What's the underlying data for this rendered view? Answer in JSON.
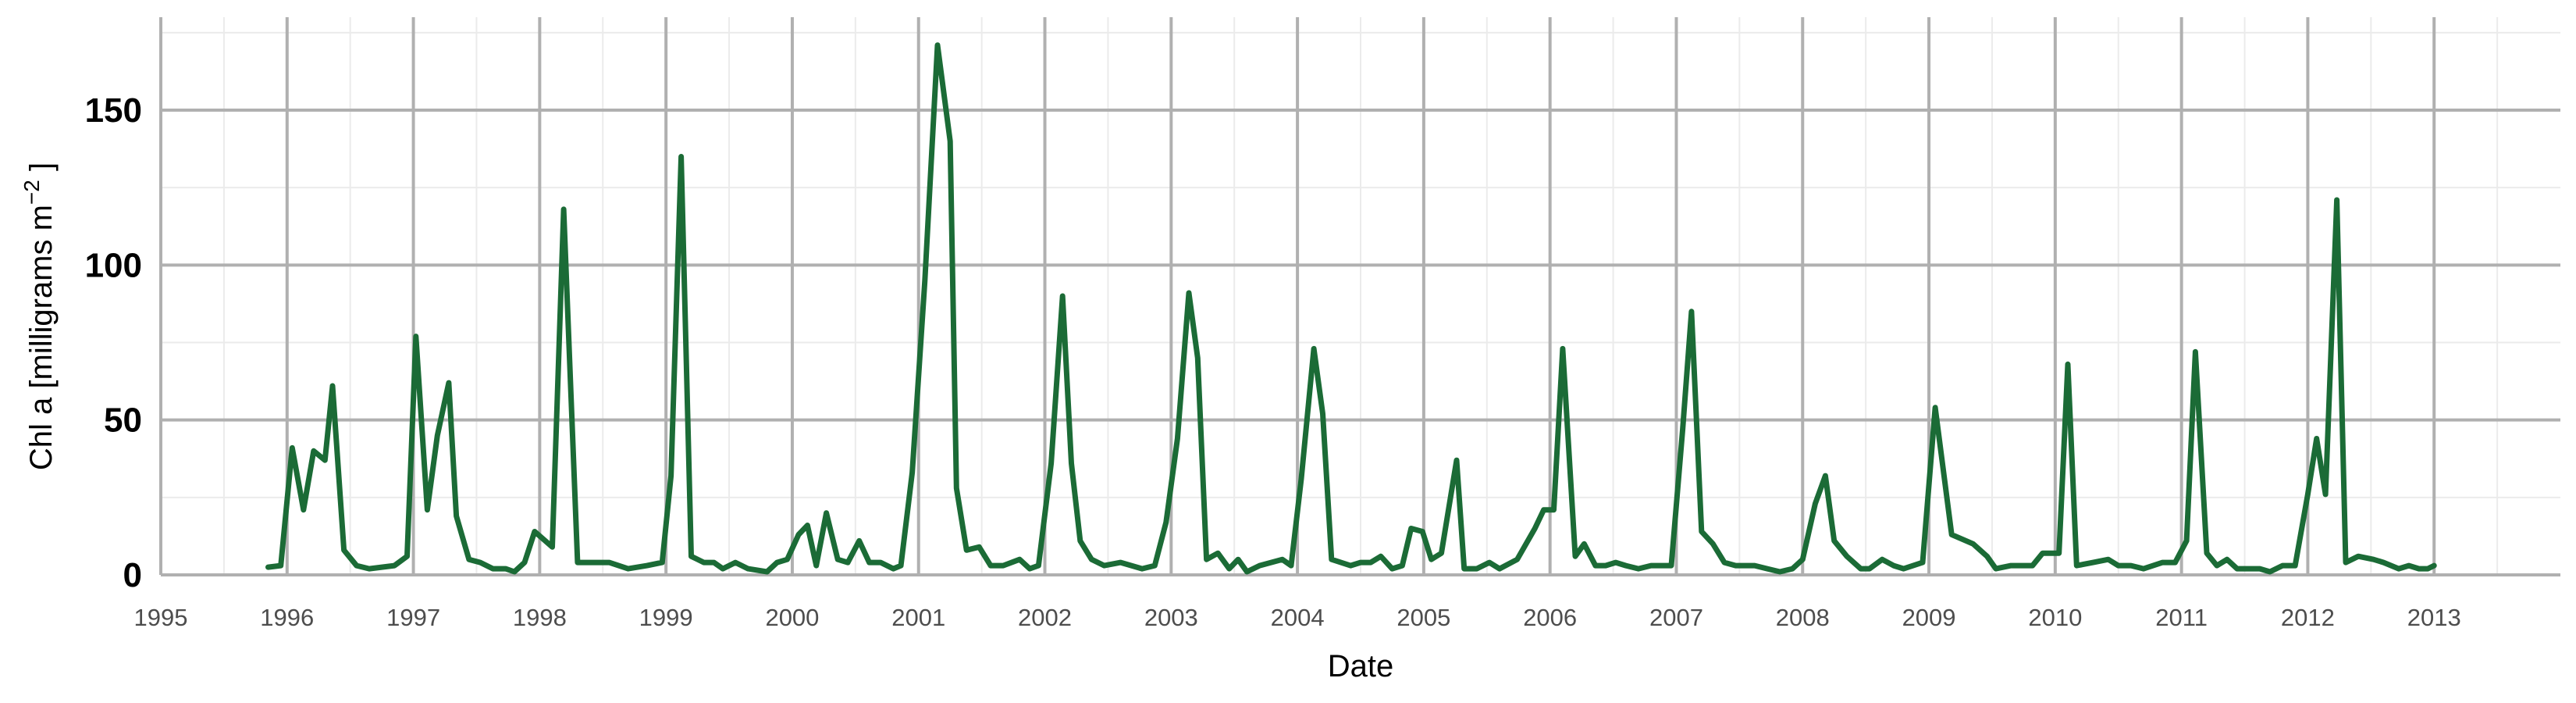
{
  "chart_data": {
    "type": "line",
    "xlabel": "Date",
    "ylabel": {
      "prefix": "Chl a [milligrams  m",
      "superscript": "−2",
      "suffix": " ]"
    },
    "xlim": [
      1995.0,
      2014.0
    ],
    "ylim": [
      0,
      180
    ],
    "x_ticks": [
      1995,
      1996,
      1997,
      1998,
      1999,
      2000,
      2001,
      2002,
      2003,
      2004,
      2005,
      2006,
      2007,
      2008,
      2009,
      2010,
      2011,
      2012,
      2013
    ],
    "y_ticks": [
      0,
      50,
      100,
      150
    ],
    "grid": true,
    "series": [
      {
        "color": "#1b6b36",
        "points": [
          [
            1995.85,
            2.5
          ],
          [
            1995.95,
            3
          ],
          [
            1996.04,
            41
          ],
          [
            1996.13,
            21
          ],
          [
            1996.21,
            40
          ],
          [
            1996.3,
            37
          ],
          [
            1996.36,
            61
          ],
          [
            1996.45,
            8
          ],
          [
            1996.55,
            3
          ],
          [
            1996.65,
            2
          ],
          [
            1996.85,
            3
          ],
          [
            1996.95,
            6
          ],
          [
            1997.02,
            77
          ],
          [
            1997.11,
            21
          ],
          [
            1997.19,
            45
          ],
          [
            1997.28,
            62
          ],
          [
            1997.34,
            19
          ],
          [
            1997.44,
            5
          ],
          [
            1997.53,
            4
          ],
          [
            1997.63,
            2
          ],
          [
            1997.73,
            2
          ],
          [
            1997.8,
            1
          ],
          [
            1997.88,
            4
          ],
          [
            1997.96,
            14
          ],
          [
            1998.1,
            9
          ],
          [
            1998.19,
            118
          ],
          [
            1998.3,
            4
          ],
          [
            1998.45,
            4
          ],
          [
            1998.55,
            4
          ],
          [
            1998.7,
            2
          ],
          [
            1998.85,
            3
          ],
          [
            1998.97,
            4
          ],
          [
            1999.04,
            32
          ],
          [
            1999.12,
            135
          ],
          [
            1999.2,
            6
          ],
          [
            1999.3,
            4
          ],
          [
            1999.38,
            4
          ],
          [
            1999.45,
            2
          ],
          [
            1999.55,
            4
          ],
          [
            1999.65,
            2
          ],
          [
            1999.8,
            1
          ],
          [
            1999.88,
            4
          ],
          [
            1999.96,
            5
          ],
          [
            2000.05,
            13
          ],
          [
            2000.12,
            16
          ],
          [
            2000.19,
            3
          ],
          [
            2000.27,
            20
          ],
          [
            2000.36,
            5
          ],
          [
            2000.44,
            4
          ],
          [
            2000.53,
            11
          ],
          [
            2000.61,
            4
          ],
          [
            2000.7,
            4
          ],
          [
            2000.8,
            2
          ],
          [
            2000.86,
            3
          ],
          [
            2000.95,
            33
          ],
          [
            2001.05,
            95
          ],
          [
            2001.15,
            171
          ],
          [
            2001.25,
            140
          ],
          [
            2001.3,
            28
          ],
          [
            2001.38,
            8
          ],
          [
            2001.48,
            9
          ],
          [
            2001.57,
            3
          ],
          [
            2001.67,
            3
          ],
          [
            2001.8,
            5
          ],
          [
            2001.88,
            2
          ],
          [
            2001.95,
            3
          ],
          [
            2002.05,
            36
          ],
          [
            2002.14,
            90
          ],
          [
            2002.21,
            36
          ],
          [
            2002.28,
            11
          ],
          [
            2002.37,
            5
          ],
          [
            2002.47,
            3
          ],
          [
            2002.6,
            4
          ],
          [
            2002.77,
            2
          ],
          [
            2002.87,
            3
          ],
          [
            2002.96,
            17
          ],
          [
            2003.05,
            44
          ],
          [
            2003.14,
            91
          ],
          [
            2003.21,
            70
          ],
          [
            2003.28,
            5
          ],
          [
            2003.37,
            7
          ],
          [
            2003.46,
            2
          ],
          [
            2003.53,
            5
          ],
          [
            2003.6,
            1
          ],
          [
            2003.7,
            3
          ],
          [
            2003.88,
            5
          ],
          [
            2003.95,
            3
          ],
          [
            2004.03,
            31
          ],
          [
            2004.13,
            73
          ],
          [
            2004.2,
            52
          ],
          [
            2004.27,
            5
          ],
          [
            2004.42,
            3
          ],
          [
            2004.5,
            4
          ],
          [
            2004.58,
            4
          ],
          [
            2004.66,
            6
          ],
          [
            2004.75,
            2
          ],
          [
            2004.83,
            3
          ],
          [
            2004.9,
            15
          ],
          [
            2004.99,
            14
          ],
          [
            2005.06,
            5
          ],
          [
            2005.14,
            7
          ],
          [
            2005.26,
            37
          ],
          [
            2005.32,
            2
          ],
          [
            2005.42,
            2
          ],
          [
            2005.52,
            4
          ],
          [
            2005.6,
            2
          ],
          [
            2005.74,
            5
          ],
          [
            2005.88,
            15
          ],
          [
            2005.95,
            21
          ],
          [
            2006.03,
            21
          ],
          [
            2006.1,
            73
          ],
          [
            2006.2,
            6
          ],
          [
            2006.27,
            10
          ],
          [
            2006.36,
            3
          ],
          [
            2006.44,
            3
          ],
          [
            2006.52,
            4
          ],
          [
            2006.6,
            3
          ],
          [
            2006.7,
            2
          ],
          [
            2006.8,
            3
          ],
          [
            2006.88,
            3
          ],
          [
            2006.96,
            3
          ],
          [
            2007.05,
            47
          ],
          [
            2007.12,
            85
          ],
          [
            2007.2,
            14
          ],
          [
            2007.29,
            10
          ],
          [
            2007.38,
            4
          ],
          [
            2007.47,
            3
          ],
          [
            2007.62,
            3
          ],
          [
            2007.72,
            2
          ],
          [
            2007.82,
            1
          ],
          [
            2007.92,
            2
          ],
          [
            2008.0,
            5
          ],
          [
            2008.1,
            23
          ],
          [
            2008.18,
            32
          ],
          [
            2008.25,
            11
          ],
          [
            2008.35,
            6
          ],
          [
            2008.46,
            2
          ],
          [
            2008.53,
            2
          ],
          [
            2008.63,
            5
          ],
          [
            2008.72,
            3
          ],
          [
            2008.8,
            2
          ],
          [
            2008.95,
            4
          ],
          [
            2009.05,
            54
          ],
          [
            2009.18,
            13
          ],
          [
            2009.35,
            10
          ],
          [
            2009.46,
            6
          ],
          [
            2009.53,
            2
          ],
          [
            2009.65,
            3
          ],
          [
            2009.72,
            3
          ],
          [
            2009.82,
            3
          ],
          [
            2009.9,
            7
          ],
          [
            2010.03,
            7
          ],
          [
            2010.1,
            68
          ],
          [
            2010.17,
            3
          ],
          [
            2010.3,
            4
          ],
          [
            2010.42,
            5
          ],
          [
            2010.5,
            3
          ],
          [
            2010.6,
            3
          ],
          [
            2010.7,
            2
          ],
          [
            2010.85,
            4
          ],
          [
            2010.95,
            4
          ],
          [
            2011.04,
            11
          ],
          [
            2011.11,
            72
          ],
          [
            2011.2,
            7
          ],
          [
            2011.28,
            3
          ],
          [
            2011.36,
            5
          ],
          [
            2011.44,
            2
          ],
          [
            2011.53,
            2
          ],
          [
            2011.62,
            2
          ],
          [
            2011.7,
            1
          ],
          [
            2011.8,
            3
          ],
          [
            2011.9,
            3
          ],
          [
            2012.0,
            26
          ],
          [
            2012.07,
            44
          ],
          [
            2012.14,
            26
          ],
          [
            2012.23,
            121
          ],
          [
            2012.3,
            4
          ],
          [
            2012.4,
            6
          ],
          [
            2012.52,
            5
          ],
          [
            2012.6,
            4
          ],
          [
            2012.72,
            2
          ],
          [
            2012.8,
            3
          ],
          [
            2012.88,
            2
          ],
          [
            2012.95,
            2
          ],
          [
            2013.0,
            3
          ]
        ]
      }
    ]
  }
}
